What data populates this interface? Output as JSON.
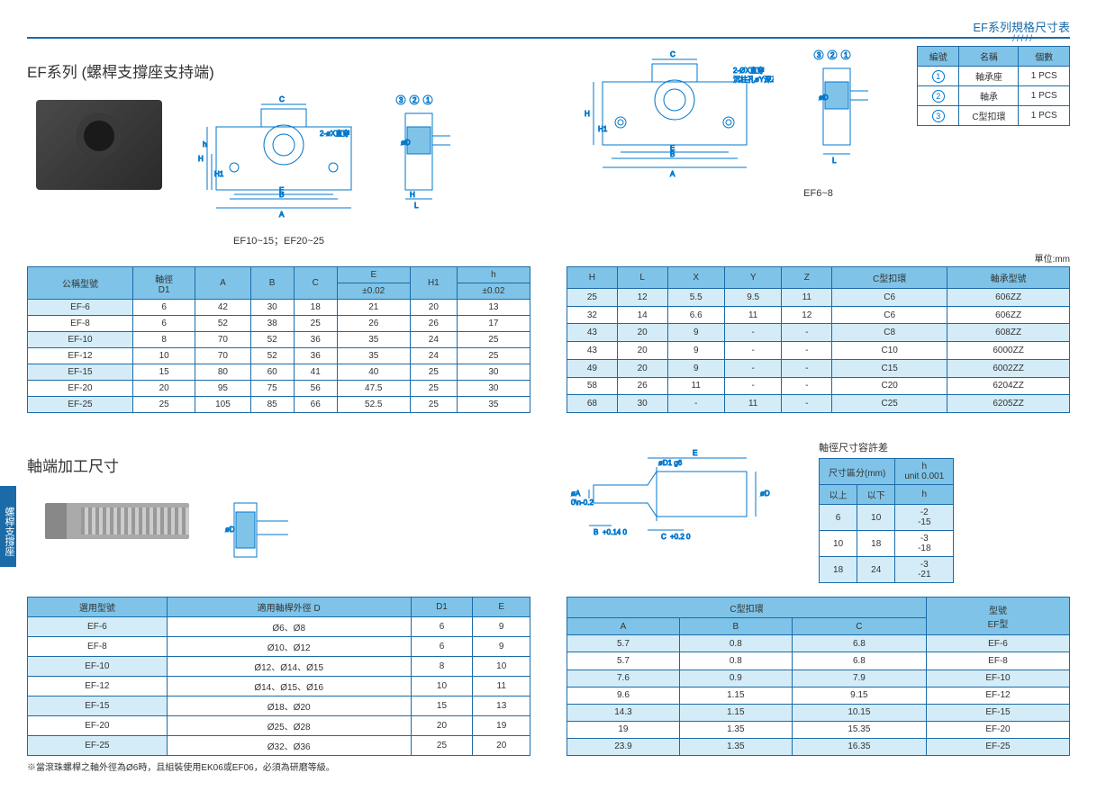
{
  "header": {
    "title": "EF系列規格尺寸表"
  },
  "section1": {
    "title": "EF系列 (螺桿支撐座支持端)",
    "caption_left": "EF10~15；EF20~25",
    "caption_right": "EF6~8",
    "unit": "單位:mm",
    "annot_left": "2-øX直穿",
    "annot_right1": "2-ØX直穿",
    "annot_right2": "沉柱孔øY深Z"
  },
  "parts_table": {
    "headers": [
      "編號",
      "名稱",
      "個數"
    ],
    "rows": [
      [
        "1",
        "軸承座",
        "1 PCS"
      ],
      [
        "2",
        "軸承",
        "1 PCS"
      ],
      [
        "3",
        "C型扣環",
        "1 PCS"
      ]
    ]
  },
  "main_table_left": {
    "headers_row1": [
      "公稱型號",
      "軸徑\nD1",
      "A",
      "B",
      "C",
      "E",
      "H1",
      "h"
    ],
    "headers_row2": [
      "",
      "",
      "",
      "",
      "",
      "±0.02",
      "",
      "±0.02"
    ],
    "rows": [
      [
        "EF-6",
        "6",
        "42",
        "30",
        "18",
        "21",
        "20",
        "13"
      ],
      [
        "EF-8",
        "6",
        "52",
        "38",
        "25",
        "26",
        "26",
        "17"
      ],
      [
        "EF-10",
        "8",
        "70",
        "52",
        "36",
        "35",
        "24",
        "25"
      ],
      [
        "EF-12",
        "10",
        "70",
        "52",
        "36",
        "35",
        "24",
        "25"
      ],
      [
        "EF-15",
        "15",
        "80",
        "60",
        "41",
        "40",
        "25",
        "30"
      ],
      [
        "EF-20",
        "20",
        "95",
        "75",
        "56",
        "47.5",
        "25",
        "30"
      ],
      [
        "EF-25",
        "25",
        "105",
        "85",
        "66",
        "52.5",
        "25",
        "35"
      ]
    ]
  },
  "main_table_right": {
    "headers": [
      "H",
      "L",
      "X",
      "Y",
      "Z",
      "C型扣環",
      "軸承型號"
    ],
    "rows": [
      [
        "25",
        "12",
        "5.5",
        "9.5",
        "11",
        "C6",
        "606ZZ"
      ],
      [
        "32",
        "14",
        "6.6",
        "11",
        "12",
        "C6",
        "606ZZ"
      ],
      [
        "43",
        "20",
        "9",
        "-",
        "-",
        "C8",
        "608ZZ"
      ],
      [
        "43",
        "20",
        "9",
        "-",
        "-",
        "C10",
        "6000ZZ"
      ],
      [
        "49",
        "20",
        "9",
        "-",
        "-",
        "C15",
        "6002ZZ"
      ],
      [
        "58",
        "26",
        "11",
        "-",
        "-",
        "C20",
        "6204ZZ"
      ],
      [
        "68",
        "30",
        "-",
        "11",
        "-",
        "C25",
        "6205ZZ"
      ]
    ]
  },
  "section2": {
    "title": "軸端加工尺寸",
    "tol_title": "軸徑尺寸容許差",
    "side_tab": "螺桿支撐座",
    "footnote": "※當滾珠螺桿之軸外徑為Ø6時，且組裝使用EK06或EF06，必須為研磨等級。",
    "dim_labels": {
      "e": "E",
      "d1g6": "øD1 g6",
      "a": "øA",
      "b": "B",
      "btol": "+0.14\n0",
      "c": "C",
      "ctol": "+0.2\n0",
      "d": "øD"
    }
  },
  "tol_table": {
    "headers_row1": [
      "尺寸區分(mm)",
      "h\nunit 0.001"
    ],
    "headers_row2": [
      "以上",
      "以下",
      "h"
    ],
    "rows": [
      [
        "6",
        "10",
        "-2\n-15"
      ],
      [
        "10",
        "18",
        "-3\n-18"
      ],
      [
        "18",
        "24",
        "-3\n-21"
      ]
    ]
  },
  "bottom_left_table": {
    "headers": [
      "選用型號",
      "適用軸桿外徑 D",
      "D1",
      "E"
    ],
    "rows": [
      [
        "EF-6",
        "Ø6、Ø8",
        "6",
        "9"
      ],
      [
        "EF-8",
        "Ø10、Ø12",
        "6",
        "9"
      ],
      [
        "EF-10",
        "Ø12、Ø14、Ø15",
        "8",
        "10"
      ],
      [
        "EF-12",
        "Ø14、Ø15、Ø16",
        "10",
        "11"
      ],
      [
        "EF-15",
        "Ø18、Ø20",
        "15",
        "13"
      ],
      [
        "EF-20",
        "Ø25、Ø28",
        "20",
        "19"
      ],
      [
        "EF-25",
        "Ø32、Ø36",
        "25",
        "20"
      ]
    ]
  },
  "bottom_right_table": {
    "headers_row1": [
      "C型扣環",
      "型號\nEF型"
    ],
    "headers_row2": [
      "A",
      "B",
      "C",
      ""
    ],
    "rows": [
      [
        "5.7",
        "0.8",
        "6.8",
        "EF-6"
      ],
      [
        "5.7",
        "0.8",
        "6.8",
        "EF-8"
      ],
      [
        "7.6",
        "0.9",
        "7.9",
        "EF-10"
      ],
      [
        "9.6",
        "1.15",
        "9.15",
        "EF-12"
      ],
      [
        "14.3",
        "1.15",
        "10.15",
        "EF-15"
      ],
      [
        "19",
        "1.35",
        "15.35",
        "EF-20"
      ],
      [
        "23.9",
        "1.35",
        "16.35",
        "EF-25"
      ]
    ]
  }
}
